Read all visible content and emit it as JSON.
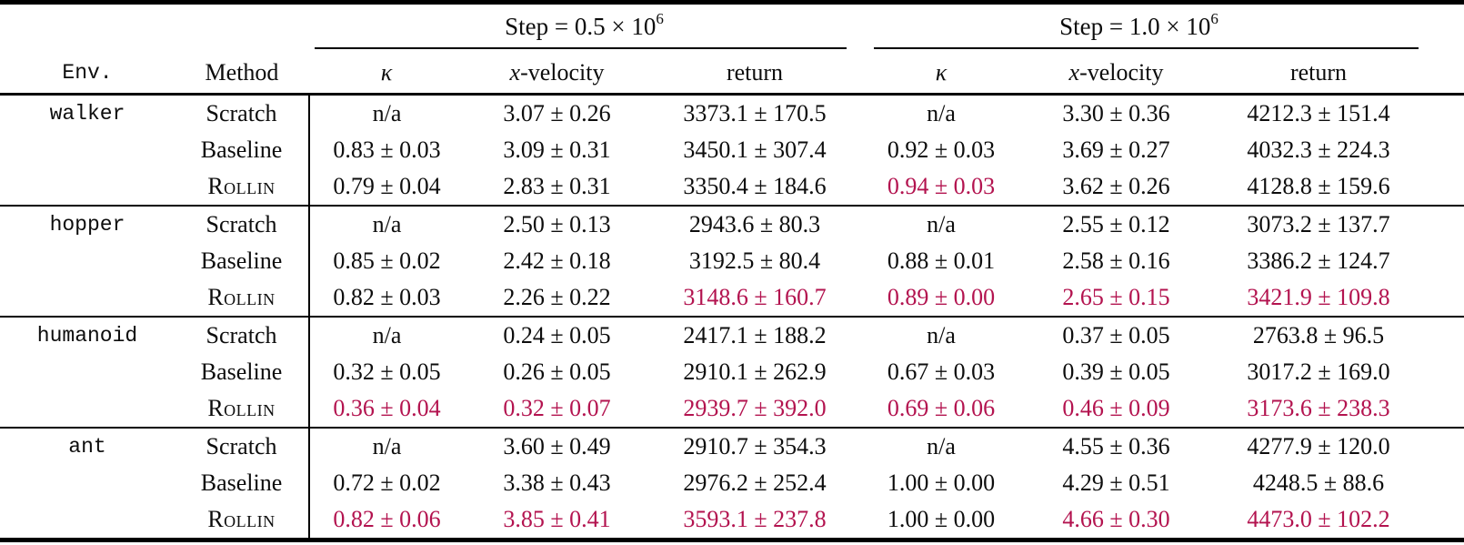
{
  "colors": {
    "highlight": "#b3134f",
    "text": "#0d0d0d",
    "rule": "#000000",
    "background": "#ffffff"
  },
  "header": {
    "env_label": "Env.",
    "method_label": "Method",
    "groups": [
      {
        "step_prefix": "Step = 0.5",
        "times_symbol": "×",
        "base": "10",
        "exponent": "6"
      },
      {
        "step_prefix": "Step = 1.0",
        "times_symbol": "×",
        "base": "10",
        "exponent": "6"
      }
    ],
    "subcolumns": {
      "kappa": "κ",
      "x_italic": "x",
      "velocity_suffix": "-velocity",
      "return_label": "return"
    }
  },
  "body": {
    "env_blocks": [
      {
        "env": "walker",
        "rows": [
          {
            "method": "Scratch",
            "small_caps": false,
            "cells": [
              {
                "text": "n/a",
                "highlight": false
              },
              {
                "text": "3.07 ± 0.26",
                "highlight": false
              },
              {
                "text": "3373.1 ± 170.5",
                "highlight": false
              },
              {
                "text": "n/a",
                "highlight": false
              },
              {
                "text": "3.30 ± 0.36",
                "highlight": false
              },
              {
                "text": "4212.3 ± 151.4",
                "highlight": false
              }
            ]
          },
          {
            "method": "Baseline",
            "small_caps": false,
            "cells": [
              {
                "text": "0.83 ± 0.03",
                "highlight": false
              },
              {
                "text": "3.09 ± 0.31",
                "highlight": false
              },
              {
                "text": "3450.1 ± 307.4",
                "highlight": false
              },
              {
                "text": "0.92 ± 0.03",
                "highlight": false
              },
              {
                "text": "3.69 ± 0.27",
                "highlight": false
              },
              {
                "text": "4032.3 ± 224.3",
                "highlight": false
              }
            ]
          },
          {
            "method": "Rollin",
            "small_caps": true,
            "cells": [
              {
                "text": "0.79 ± 0.04",
                "highlight": false
              },
              {
                "text": "2.83 ± 0.31",
                "highlight": false
              },
              {
                "text": "3350.4 ± 184.6",
                "highlight": false
              },
              {
                "text": "0.94 ± 0.03",
                "highlight": true
              },
              {
                "text": "3.62 ± 0.26",
                "highlight": false
              },
              {
                "text": "4128.8 ± 159.6",
                "highlight": false
              }
            ]
          }
        ]
      },
      {
        "env": "hopper",
        "rows": [
          {
            "method": "Scratch",
            "small_caps": false,
            "cells": [
              {
                "text": "n/a",
                "highlight": false
              },
              {
                "text": "2.50 ± 0.13",
                "highlight": false
              },
              {
                "text": "2943.6 ± 80.3",
                "highlight": false
              },
              {
                "text": "n/a",
                "highlight": false
              },
              {
                "text": "2.55 ± 0.12",
                "highlight": false
              },
              {
                "text": "3073.2 ± 137.7",
                "highlight": false
              }
            ]
          },
          {
            "method": "Baseline",
            "small_caps": false,
            "cells": [
              {
                "text": "0.85 ± 0.02",
                "highlight": false
              },
              {
                "text": "2.42 ± 0.18",
                "highlight": false
              },
              {
                "text": "3192.5 ± 80.4",
                "highlight": false
              },
              {
                "text": "0.88 ± 0.01",
                "highlight": false
              },
              {
                "text": "2.58 ± 0.16",
                "highlight": false
              },
              {
                "text": "3386.2 ± 124.7",
                "highlight": false
              }
            ]
          },
          {
            "method": "Rollin",
            "small_caps": true,
            "cells": [
              {
                "text": "0.82 ± 0.03",
                "highlight": false
              },
              {
                "text": "2.26 ± 0.22",
                "highlight": false
              },
              {
                "text": "3148.6 ± 160.7",
                "highlight": true
              },
              {
                "text": "0.89 ± 0.00",
                "highlight": true
              },
              {
                "text": "2.65 ± 0.15",
                "highlight": true
              },
              {
                "text": "3421.9 ± 109.8",
                "highlight": true
              }
            ]
          }
        ]
      },
      {
        "env": "humanoid",
        "rows": [
          {
            "method": "Scratch",
            "small_caps": false,
            "cells": [
              {
                "text": "n/a",
                "highlight": false
              },
              {
                "text": "0.24 ± 0.05",
                "highlight": false
              },
              {
                "text": "2417.1 ± 188.2",
                "highlight": false
              },
              {
                "text": "n/a",
                "highlight": false
              },
              {
                "text": "0.37 ± 0.05",
                "highlight": false
              },
              {
                "text": "2763.8 ± 96.5",
                "highlight": false
              }
            ]
          },
          {
            "method": "Baseline",
            "small_caps": false,
            "cells": [
              {
                "text": "0.32 ± 0.05",
                "highlight": false
              },
              {
                "text": "0.26 ± 0.05",
                "highlight": false
              },
              {
                "text": "2910.1 ± 262.9",
                "highlight": false
              },
              {
                "text": "0.67 ± 0.03",
                "highlight": false
              },
              {
                "text": "0.39 ± 0.05",
                "highlight": false
              },
              {
                "text": "3017.2 ± 169.0",
                "highlight": false
              }
            ]
          },
          {
            "method": "Rollin",
            "small_caps": true,
            "cells": [
              {
                "text": "0.36 ± 0.04",
                "highlight": true
              },
              {
                "text": "0.32 ± 0.07",
                "highlight": true
              },
              {
                "text": "2939.7 ± 392.0",
                "highlight": true
              },
              {
                "text": "0.69 ± 0.06",
                "highlight": true
              },
              {
                "text": "0.46 ± 0.09",
                "highlight": true
              },
              {
                "text": "3173.6 ± 238.3",
                "highlight": true
              }
            ]
          }
        ]
      },
      {
        "env": "ant",
        "rows": [
          {
            "method": "Scratch",
            "small_caps": false,
            "cells": [
              {
                "text": "n/a",
                "highlight": false
              },
              {
                "text": "3.60 ± 0.49",
                "highlight": false
              },
              {
                "text": "2910.7 ± 354.3",
                "highlight": false
              },
              {
                "text": "n/a",
                "highlight": false
              },
              {
                "text": "4.55 ± 0.36",
                "highlight": false
              },
              {
                "text": "4277.9 ± 120.0",
                "highlight": false
              }
            ]
          },
          {
            "method": "Baseline",
            "small_caps": false,
            "cells": [
              {
                "text": "0.72 ± 0.02",
                "highlight": false
              },
              {
                "text": "3.38 ± 0.43",
                "highlight": false
              },
              {
                "text": "2976.2 ± 252.4",
                "highlight": false
              },
              {
                "text": "1.00 ± 0.00",
                "highlight": false
              },
              {
                "text": "4.29 ± 0.51",
                "highlight": false
              },
              {
                "text": "4248.5 ± 88.6",
                "highlight": false
              }
            ]
          },
          {
            "method": "Rollin",
            "small_caps": true,
            "cells": [
              {
                "text": "0.82 ± 0.06",
                "highlight": true
              },
              {
                "text": "3.85 ± 0.41",
                "highlight": true
              },
              {
                "text": "3593.1 ± 237.8",
                "highlight": true
              },
              {
                "text": "1.00 ± 0.00",
                "highlight": false
              },
              {
                "text": "4.66 ± 0.30",
                "highlight": true
              },
              {
                "text": "4473.0 ± 102.2",
                "highlight": true
              }
            ]
          }
        ]
      }
    ]
  }
}
